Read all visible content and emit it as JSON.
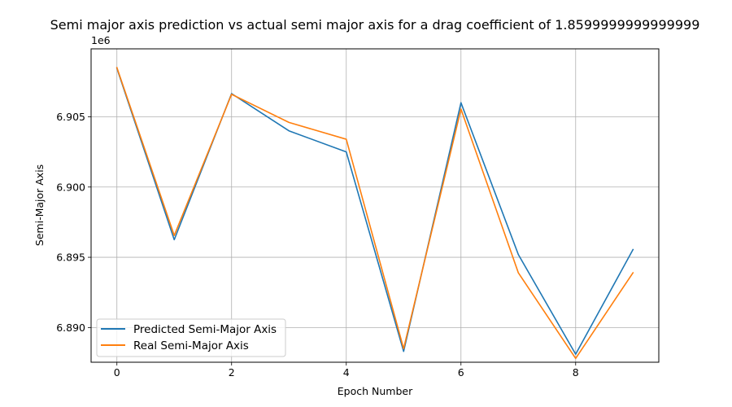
{
  "chart_data": {
    "type": "line",
    "title": "Semi major axis prediction vs actual semi major axis for a drag coefficient of 1.8599999999999999",
    "xlabel": "Epoch Number",
    "ylabel": "Semi-Major Axis",
    "y_offset_label": "1e6",
    "xlim": [
      -0.45,
      9.45
    ],
    "ylim": [
      6.88753,
      6.909836
    ],
    "x_ticks": [
      0,
      2,
      4,
      6,
      8
    ],
    "x_tick_labels": [
      "0",
      "2",
      "4",
      "6",
      "8"
    ],
    "y_ticks": [
      6.89,
      6.895,
      6.9,
      6.905
    ],
    "y_tick_labels": [
      "6.890",
      "6.895",
      "6.900",
      "6.905"
    ],
    "grid": true,
    "legend_position": "lower-left",
    "x": [
      0,
      1,
      2,
      3,
      4,
      5,
      6,
      7,
      8,
      9
    ],
    "series": [
      {
        "name": "Predicted Semi-Major Axis",
        "color": "#1f77b4",
        "values": [
          6.90845,
          6.89625,
          6.90665,
          6.904,
          6.9025,
          6.8883,
          6.906,
          6.8952,
          6.8881,
          6.89555
        ]
      },
      {
        "name": "Real Semi-Major Axis",
        "color": "#ff7f0e",
        "values": [
          6.9085,
          6.89655,
          6.9066,
          6.9046,
          6.9034,
          6.8885,
          6.90555,
          6.8939,
          6.8878,
          6.8939
        ]
      }
    ]
  }
}
